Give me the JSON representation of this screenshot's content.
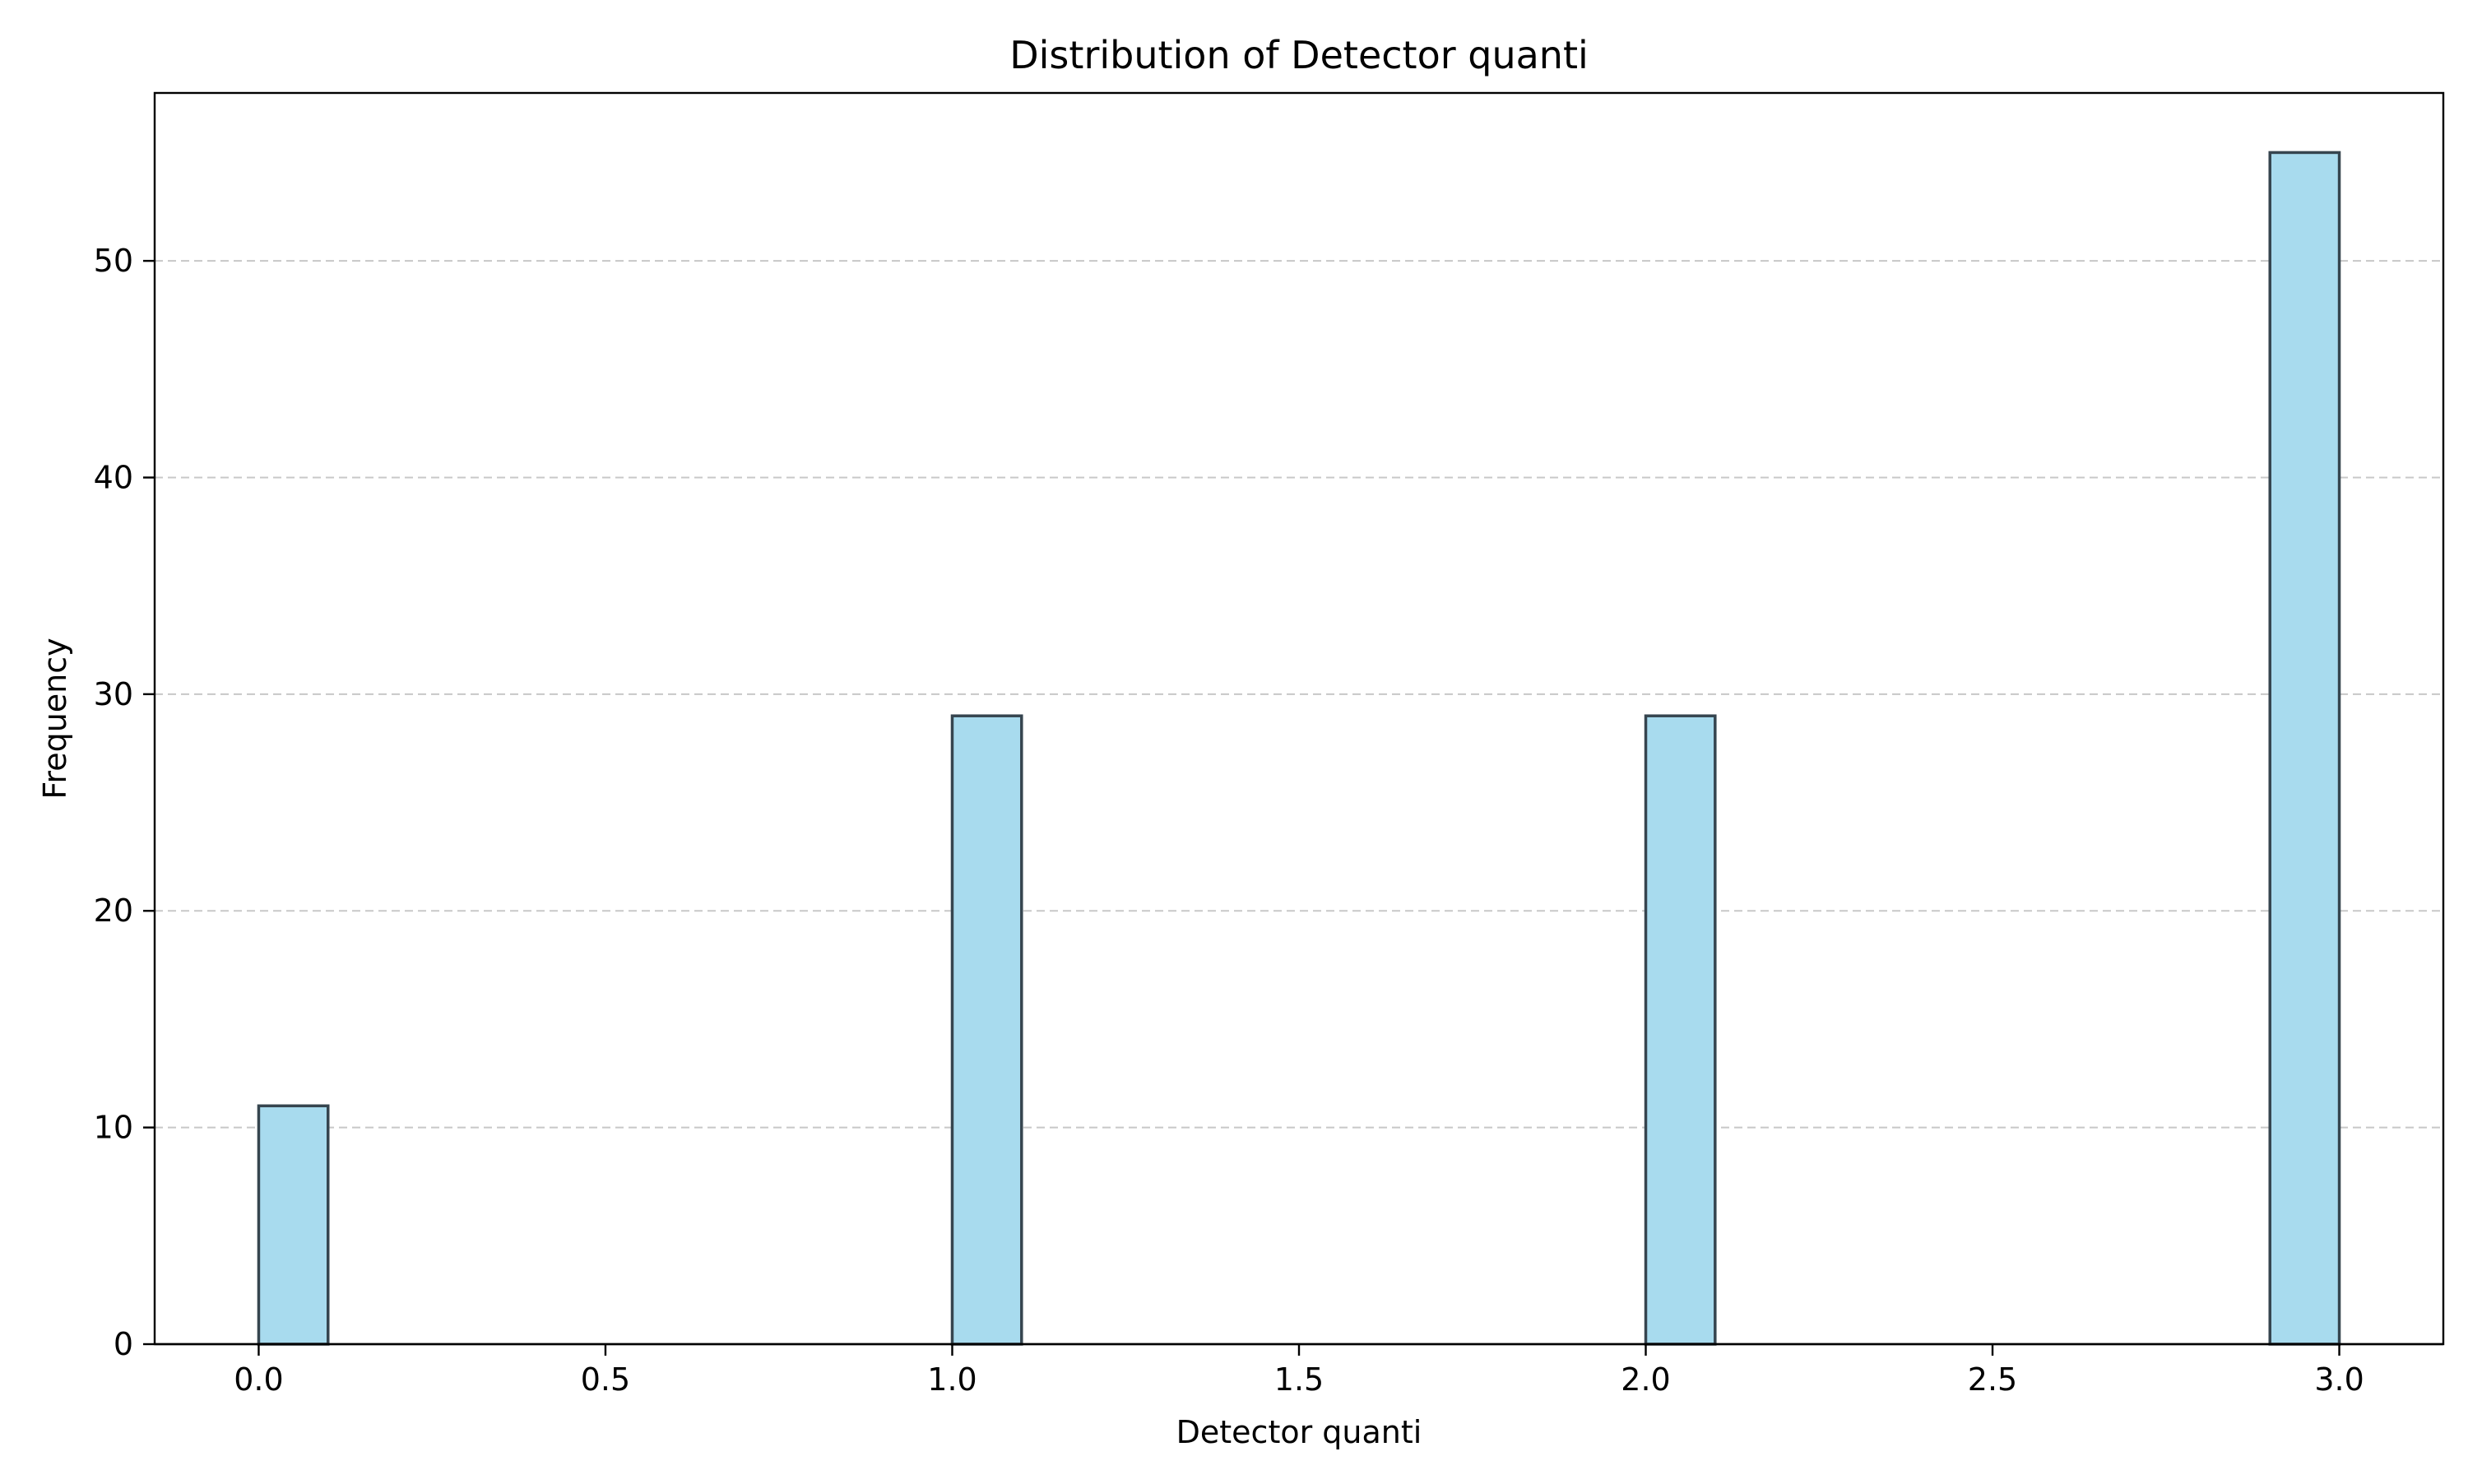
{
  "chart_data": {
    "type": "bar",
    "title": "Distribution of Detector quanti",
    "xlabel": "Detector quanti",
    "ylabel": "Frequency",
    "xlim": [
      -0.15,
      3.15
    ],
    "ylim": [
      0,
      57.75
    ],
    "xticks": [
      "0.0",
      "0.5",
      "1.0",
      "1.5",
      "2.0",
      "2.5",
      "3.0"
    ],
    "yticks": [
      "0",
      "10",
      "20",
      "30",
      "40",
      "50"
    ],
    "grid": "y-dashed",
    "bin_width": 0.1,
    "bars": [
      {
        "x": 0.0,
        "value": 11
      },
      {
        "x": 1.0,
        "value": 29
      },
      {
        "x": 2.0,
        "value": 29
      },
      {
        "x": 2.9,
        "value": 55
      }
    ],
    "colors": {
      "bar_fill": "#a8dbee",
      "bar_edge": "#36454f",
      "grid": "#c8c8c8"
    }
  }
}
